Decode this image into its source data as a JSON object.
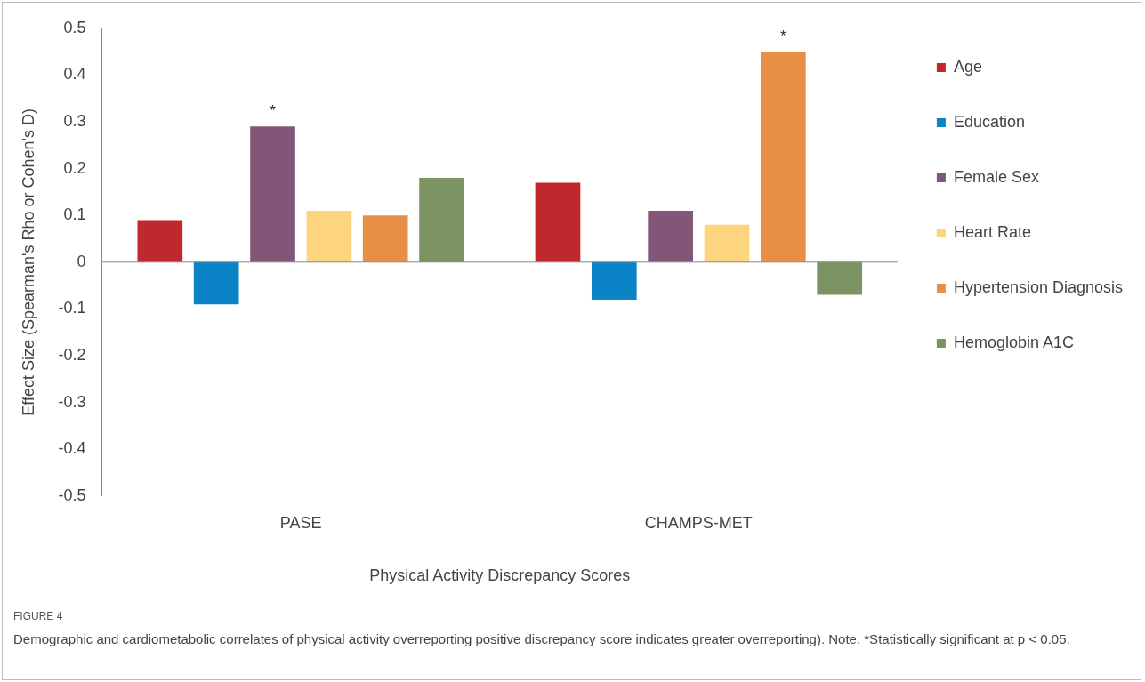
{
  "chart_data": {
    "type": "bar",
    "xlabel": "Physical Activity Discrepancy Scores",
    "ylabel": "Effect Size (Spearman's Rho or Cohen's D)",
    "categories": [
      "PASE",
      "CHAMPS-MET"
    ],
    "series": [
      {
        "name": "Age",
        "color": "#c0282d",
        "values": [
          0.09,
          0.17
        ]
      },
      {
        "name": "Education",
        "color": "#0a84c6",
        "values": [
          -0.09,
          -0.08
        ]
      },
      {
        "name": "Female Sex",
        "color": "#835677",
        "values": [
          0.29,
          0.11
        ],
        "value_labels": [
          "*",
          null
        ]
      },
      {
        "name": "Heart Rate",
        "color": "#fdd57f",
        "values": [
          0.11,
          0.08
        ]
      },
      {
        "name": "Hypertension Diagnosis",
        "color": "#e98f45",
        "values": [
          0.1,
          0.45
        ],
        "value_labels": [
          null,
          "*"
        ]
      },
      {
        "name": "Hemoglobin A1C",
        "color": "#7b9462",
        "values": [
          0.18,
          -0.07
        ]
      }
    ],
    "ylim": [
      -0.5,
      0.5
    ],
    "yticks": [
      -0.5,
      -0.4,
      -0.3,
      -0.2,
      -0.1,
      0,
      0.1,
      0.2,
      0.3,
      0.4,
      0.5
    ],
    "grid": false,
    "legend": "right",
    "ref_lines": [
      {
        "axis": "y",
        "value": 0,
        "color": "#888888"
      }
    ],
    "annotations": [
      "FIGURE 4",
      "Demographic and cardiometabolic correlates of physical activity overreporting positive discrepancy score indicates greater overreporting). Note. *Statistically significant at p < 0.05."
    ]
  }
}
